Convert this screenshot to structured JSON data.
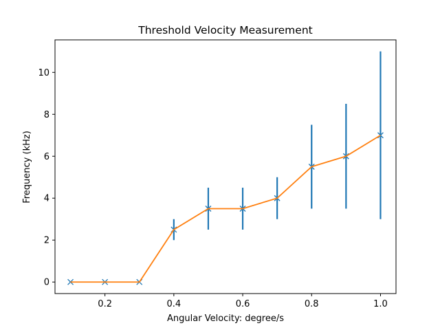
{
  "chart_data": {
    "type": "line",
    "title": "Threshold Velocity Measurement",
    "xlabel": "Angular Velocity: degree/s",
    "ylabel": "Frequency (kHz)",
    "xlim": [
      0.055,
      1.045
    ],
    "ylim": [
      -0.55,
      11.55
    ],
    "xticks": [
      0.2,
      0.4,
      0.6,
      0.8,
      1.0
    ],
    "xtick_labels": [
      "0.2",
      "0.4",
      "0.6",
      "0.8",
      "1.0"
    ],
    "yticks": [
      0,
      2,
      4,
      6,
      8,
      10
    ],
    "ytick_labels": [
      "0",
      "2",
      "4",
      "6",
      "8",
      "10"
    ],
    "grid": false,
    "series": [
      {
        "marker": "x",
        "color": "#ff7f0e",
        "error_color": "#1f77b4",
        "x": [
          0.1,
          0.2,
          0.3,
          0.4,
          0.5,
          0.6,
          0.7,
          0.8,
          0.9,
          1.0
        ],
        "y": [
          0,
          0,
          0,
          2.5,
          3.5,
          3.5,
          4.0,
          5.5,
          6.0,
          7.0
        ],
        "err_low": [
          0,
          0,
          0,
          2.0,
          2.5,
          2.5,
          3.0,
          3.5,
          3.5,
          3.0
        ],
        "err_high": [
          0,
          0,
          0,
          3.0,
          4.5,
          4.5,
          5.0,
          7.5,
          8.5,
          11.0
        ]
      }
    ]
  }
}
